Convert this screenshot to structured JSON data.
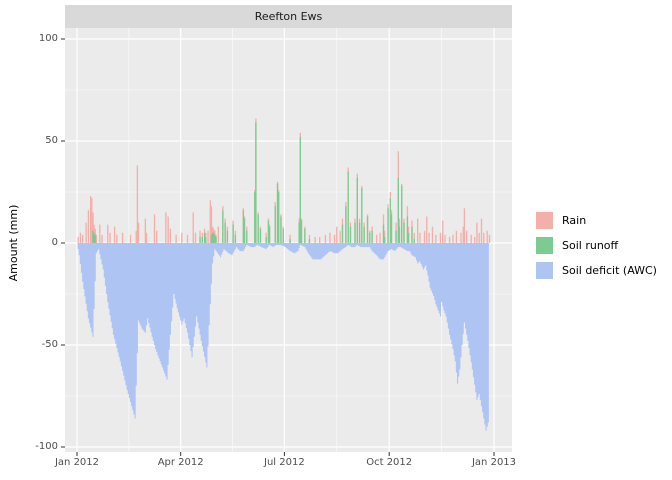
{
  "figure": {
    "title": "Reefton Ews",
    "y_axis_label": "Amount (mm)"
  },
  "legend": {
    "items": [
      {
        "label": "Rain",
        "color": "#f4afa9"
      },
      {
        "label": "Soil runoff",
        "color": "#7ccb90"
      },
      {
        "label": "Soil deficit (AWC)",
        "color": "#aec5f4"
      }
    ]
  },
  "colors": {
    "panel_background": "#ebebeb",
    "strip_background": "#d9d9d9",
    "grid_major": "#ffffff",
    "grid_minor": "#ffffff",
    "axis_text": "#4d4d4d",
    "tick_mark": "#333333"
  },
  "chart_data": {
    "type": "area",
    "title": "Reefton Ews",
    "xlabel": "",
    "ylabel": "Amount (mm)",
    "x_unit": "days since 2012-01-01",
    "xlim_days": [
      -10.5,
      381.8
    ],
    "ylim": [
      -102.5,
      105.4
    ],
    "grid": true,
    "legend_position": "right",
    "x_ticks": [
      {
        "label": "Jan 2012",
        "day": 0
      },
      {
        "label": "Apr 2012",
        "day": 91
      },
      {
        "label": "Jul 2012",
        "day": 182
      },
      {
        "label": "Oct 2012",
        "day": 274
      },
      {
        "label": "Jan 2013",
        "day": 366
      }
    ],
    "x_minor_days": [
      45.5,
      136.5,
      228,
      320
    ],
    "y_ticks": [
      {
        "label": "100",
        "value": 100
      },
      {
        "label": "50",
        "value": 50
      },
      {
        "label": "0",
        "value": 0
      },
      {
        "label": "-50",
        "value": -50
      },
      {
        "label": "-100",
        "value": -100
      }
    ],
    "y_minor": [
      75,
      25,
      -25,
      -75
    ],
    "series": [
      {
        "name": "Rain",
        "type": "bar",
        "color": "#f4afa9",
        "points": [
          [
            1,
            3
          ],
          [
            3,
            5
          ],
          [
            5,
            4
          ],
          [
            8,
            10
          ],
          [
            10,
            16
          ],
          [
            12,
            23
          ],
          [
            13,
            22
          ],
          [
            14,
            15
          ],
          [
            15,
            9
          ],
          [
            16,
            7
          ],
          [
            17,
            4
          ],
          [
            20,
            9
          ],
          [
            22,
            4
          ],
          [
            27,
            9
          ],
          [
            29,
            5
          ],
          [
            33,
            8
          ],
          [
            35,
            4
          ],
          [
            40,
            5
          ],
          [
            47,
            4
          ],
          [
            52,
            6
          ],
          [
            53,
            38
          ],
          [
            54,
            10
          ],
          [
            60,
            12
          ],
          [
            61,
            5
          ],
          [
            68,
            14
          ],
          [
            70,
            6
          ],
          [
            78,
            15
          ],
          [
            80,
            13
          ],
          [
            82,
            7
          ],
          [
            87,
            4
          ],
          [
            92,
            5
          ],
          [
            97,
            4
          ],
          [
            102,
            15
          ],
          [
            104,
            5
          ],
          [
            108,
            6
          ],
          [
            110,
            5
          ],
          [
            112,
            7
          ],
          [
            113,
            5
          ],
          [
            115,
            6
          ],
          [
            117,
            21
          ],
          [
            118,
            18
          ],
          [
            119,
            8
          ],
          [
            120,
            7
          ],
          [
            121,
            6
          ],
          [
            122,
            4
          ],
          [
            124,
            8
          ],
          [
            128,
            18
          ],
          [
            130,
            12
          ],
          [
            132,
            8
          ],
          [
            137,
            11
          ],
          [
            139,
            6
          ],
          [
            146,
            17
          ],
          [
            147,
            13
          ],
          [
            149,
            8
          ],
          [
            156,
            26
          ],
          [
            157,
            61
          ],
          [
            159,
            15
          ],
          [
            161,
            8
          ],
          [
            166,
            5
          ],
          [
            168,
            12
          ],
          [
            169,
            9
          ],
          [
            174,
            20
          ],
          [
            176,
            30
          ],
          [
            177,
            26
          ],
          [
            179,
            14
          ],
          [
            181,
            8
          ],
          [
            187,
            4
          ],
          [
            195,
            12
          ],
          [
            196,
            54
          ],
          [
            197,
            12
          ],
          [
            200,
            8
          ],
          [
            204,
            4
          ],
          [
            209,
            3
          ],
          [
            213,
            3
          ],
          [
            218,
            4
          ],
          [
            222,
            5
          ],
          [
            226,
            4
          ],
          [
            228,
            8
          ],
          [
            231,
            6
          ],
          [
            233,
            12
          ],
          [
            236,
            20
          ],
          [
            238,
            37
          ],
          [
            240,
            10
          ],
          [
            244,
            12
          ],
          [
            246,
            34
          ],
          [
            248,
            12
          ],
          [
            250,
            28
          ],
          [
            252,
            10
          ],
          [
            255,
            14
          ],
          [
            257,
            6
          ],
          [
            259,
            8
          ],
          [
            263,
            4
          ],
          [
            266,
            5
          ],
          [
            269,
            14
          ],
          [
            270,
            6
          ],
          [
            273,
            19
          ],
          [
            275,
            25
          ],
          [
            276,
            16
          ],
          [
            280,
            10
          ],
          [
            282,
            45
          ],
          [
            283,
            12
          ],
          [
            285,
            29
          ],
          [
            287,
            12
          ],
          [
            290,
            18
          ],
          [
            291,
            8
          ],
          [
            294,
            11
          ],
          [
            296,
            5
          ],
          [
            299,
            12
          ],
          [
            301,
            5
          ],
          [
            305,
            6
          ],
          [
            307,
            13
          ],
          [
            309,
            5
          ],
          [
            312,
            8
          ],
          [
            315,
            4
          ],
          [
            319,
            5
          ],
          [
            321,
            11
          ],
          [
            323,
            4
          ],
          [
            327,
            3
          ],
          [
            330,
            4
          ],
          [
            333,
            6
          ],
          [
            337,
            5
          ],
          [
            339,
            8
          ],
          [
            340,
            17
          ],
          [
            342,
            6
          ],
          [
            346,
            4
          ],
          [
            349,
            3
          ],
          [
            351,
            10
          ],
          [
            353,
            5
          ],
          [
            355,
            12
          ],
          [
            357,
            5
          ],
          [
            360,
            6
          ],
          [
            362,
            4
          ]
        ]
      },
      {
        "name": "Soil runoff",
        "type": "bar",
        "color": "#7ccb90",
        "points": [
          [
            14,
            6
          ],
          [
            15,
            5
          ],
          [
            16,
            4
          ],
          [
            108,
            3
          ],
          [
            110,
            3
          ],
          [
            112,
            5
          ],
          [
            113,
            3
          ],
          [
            118,
            4
          ],
          [
            119,
            5
          ],
          [
            120,
            5
          ],
          [
            121,
            4
          ],
          [
            122,
            3
          ],
          [
            128,
            16
          ],
          [
            130,
            10
          ],
          [
            132,
            6
          ],
          [
            137,
            9
          ],
          [
            139,
            4
          ],
          [
            146,
            16
          ],
          [
            147,
            12
          ],
          [
            149,
            6
          ],
          [
            156,
            25
          ],
          [
            157,
            59
          ],
          [
            159,
            14
          ],
          [
            161,
            7
          ],
          [
            166,
            3
          ],
          [
            168,
            11
          ],
          [
            169,
            8
          ],
          [
            174,
            18
          ],
          [
            176,
            29
          ],
          [
            177,
            25
          ],
          [
            179,
            13
          ],
          [
            181,
            7
          ],
          [
            187,
            2
          ],
          [
            195,
            10
          ],
          [
            196,
            52
          ],
          [
            197,
            11
          ],
          [
            200,
            7
          ],
          [
            204,
            2
          ],
          [
            233,
            9
          ],
          [
            236,
            18
          ],
          [
            238,
            35
          ],
          [
            240,
            8
          ],
          [
            244,
            10
          ],
          [
            246,
            32
          ],
          [
            248,
            10
          ],
          [
            250,
            27
          ],
          [
            252,
            8
          ],
          [
            255,
            13
          ],
          [
            257,
            5
          ],
          [
            259,
            6
          ],
          [
            269,
            9
          ],
          [
            270,
            3
          ],
          [
            273,
            17
          ],
          [
            275,
            22
          ],
          [
            276,
            14
          ],
          [
            280,
            6
          ],
          [
            282,
            32
          ],
          [
            283,
            8
          ],
          [
            285,
            28
          ],
          [
            287,
            10
          ],
          [
            290,
            13
          ],
          [
            291,
            5
          ],
          [
            294,
            8
          ],
          [
            296,
            2
          ]
        ]
      },
      {
        "name": "Soil deficit (AWC)",
        "type": "area",
        "color": "#aec5f4",
        "points": [
          [
            0,
            0
          ],
          [
            2,
            -6
          ],
          [
            5,
            -19
          ],
          [
            10,
            -37
          ],
          [
            14,
            -46
          ],
          [
            17,
            -5
          ],
          [
            19,
            -3
          ],
          [
            23,
            -13
          ],
          [
            27,
            -29
          ],
          [
            32,
            -45
          ],
          [
            38,
            -58
          ],
          [
            44,
            -72
          ],
          [
            51,
            -86
          ],
          [
            54,
            -38
          ],
          [
            57,
            -42
          ],
          [
            60,
            -44
          ],
          [
            62,
            -37
          ],
          [
            66,
            -46
          ],
          [
            69,
            -52
          ],
          [
            73,
            -58
          ],
          [
            79,
            -67
          ],
          [
            82,
            -45
          ],
          [
            85,
            -25
          ],
          [
            88,
            -32
          ],
          [
            92,
            -40
          ],
          [
            94,
            -37
          ],
          [
            97,
            -44
          ],
          [
            101,
            -56
          ],
          [
            105,
            -36
          ],
          [
            109,
            -48
          ],
          [
            114,
            -61
          ],
          [
            117,
            -30
          ],
          [
            119,
            -10
          ],
          [
            121,
            -3
          ],
          [
            126,
            -7
          ],
          [
            129,
            -3
          ],
          [
            133,
            -5
          ],
          [
            136,
            -6
          ],
          [
            140,
            -2
          ],
          [
            143,
            -4
          ],
          [
            146,
            -4
          ],
          [
            149,
            -1
          ],
          [
            153,
            -2
          ],
          [
            156,
            -2
          ],
          [
            158,
            -1
          ],
          [
            162,
            -2
          ],
          [
            166,
            -3
          ],
          [
            169,
            -1
          ],
          [
            172,
            -2
          ],
          [
            175,
            -1
          ],
          [
            179,
            -1
          ],
          [
            183,
            -2
          ],
          [
            187,
            -4
          ],
          [
            191,
            -5
          ],
          [
            194,
            -4
          ],
          [
            196,
            -1
          ],
          [
            200,
            -2
          ],
          [
            203,
            -5
          ],
          [
            207,
            -8
          ],
          [
            211,
            -8
          ],
          [
            214,
            -8
          ],
          [
            218,
            -6
          ],
          [
            222,
            -4
          ],
          [
            226,
            -5
          ],
          [
            229,
            -5
          ],
          [
            233,
            -3
          ],
          [
            236,
            -2
          ],
          [
            238,
            -1
          ],
          [
            241,
            -2
          ],
          [
            244,
            -2
          ],
          [
            246,
            -1
          ],
          [
            249,
            -2
          ],
          [
            252,
            -2
          ],
          [
            255,
            -2
          ],
          [
            257,
            -2
          ],
          [
            259,
            -4
          ],
          [
            261,
            -5
          ],
          [
            263,
            -6
          ],
          [
            266,
            -8
          ],
          [
            269,
            -8
          ],
          [
            271,
            -6
          ],
          [
            273,
            -4
          ],
          [
            276,
            -3
          ],
          [
            279,
            -4
          ],
          [
            282,
            -2
          ],
          [
            284,
            -2
          ],
          [
            287,
            -3
          ],
          [
            290,
            -4
          ],
          [
            292,
            -4
          ],
          [
            294,
            -6
          ],
          [
            297,
            -7
          ],
          [
            299,
            -10
          ],
          [
            301,
            -9
          ],
          [
            304,
            -13
          ],
          [
            306,
            -11
          ],
          [
            308,
            -16
          ],
          [
            310,
            -22
          ],
          [
            313,
            -26
          ],
          [
            315,
            -30
          ],
          [
            319,
            -36
          ],
          [
            320,
            -29
          ],
          [
            322,
            -33
          ],
          [
            324,
            -36
          ],
          [
            327,
            -45
          ],
          [
            330,
            -52
          ],
          [
            332,
            -58
          ],
          [
            334,
            -69
          ],
          [
            336,
            -62
          ],
          [
            338,
            -50
          ],
          [
            340,
            -39
          ],
          [
            343,
            -48
          ],
          [
            347,
            -62
          ],
          [
            351,
            -77
          ],
          [
            353,
            -74
          ],
          [
            356,
            -83
          ],
          [
            359,
            -92
          ],
          [
            361,
            -88
          ]
        ]
      }
    ]
  }
}
